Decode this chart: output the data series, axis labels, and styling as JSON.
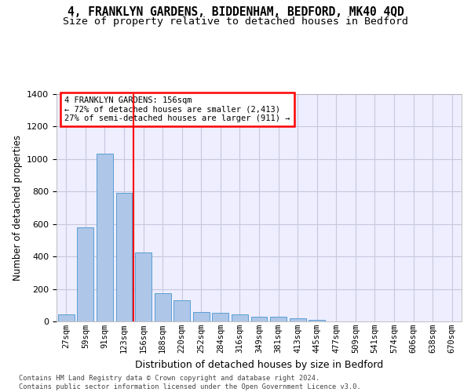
{
  "title": "4, FRANKLYN GARDENS, BIDDENHAM, BEDFORD, MK40 4QD",
  "subtitle": "Size of property relative to detached houses in Bedford",
  "xlabel": "Distribution of detached houses by size in Bedford",
  "ylabel": "Number of detached properties",
  "footer_line1": "Contains HM Land Registry data © Crown copyright and database right 2024.",
  "footer_line2": "Contains public sector information licensed under the Open Government Licence v3.0.",
  "bar_categories": [
    "27sqm",
    "59sqm",
    "91sqm",
    "123sqm",
    "156sqm",
    "188sqm",
    "220sqm",
    "252sqm",
    "284sqm",
    "316sqm",
    "349sqm",
    "381sqm",
    "413sqm",
    "445sqm",
    "477sqm",
    "509sqm",
    "541sqm",
    "574sqm",
    "606sqm",
    "638sqm",
    "670sqm"
  ],
  "bar_values": [
    45,
    578,
    1035,
    790,
    425,
    175,
    128,
    60,
    55,
    45,
    28,
    27,
    20,
    12,
    0,
    0,
    0,
    0,
    0,
    0,
    0
  ],
  "bar_color": "#aec6e8",
  "bar_edge_color": "#5a9fd4",
  "vline_x": 3.5,
  "vline_color": "red",
  "annotation_text": "4 FRANKLYN GARDENS: 156sqm\n← 72% of detached houses are smaller (2,413)\n27% of semi-detached houses are larger (911) →",
  "annotation_box_facecolor": "white",
  "annotation_box_edgecolor": "red",
  "ylim": [
    0,
    1400
  ],
  "yticks": [
    0,
    200,
    400,
    600,
    800,
    1000,
    1200,
    1400
  ],
  "grid_color": "#c8c8dc",
  "bg_color": "#eeeeff",
  "title_fontsize": 10.5,
  "subtitle_fontsize": 9.5,
  "tick_fontsize": 7.5,
  "ylabel_fontsize": 8.5,
  "xlabel_fontsize": 9,
  "footer_fontsize": 6.2
}
